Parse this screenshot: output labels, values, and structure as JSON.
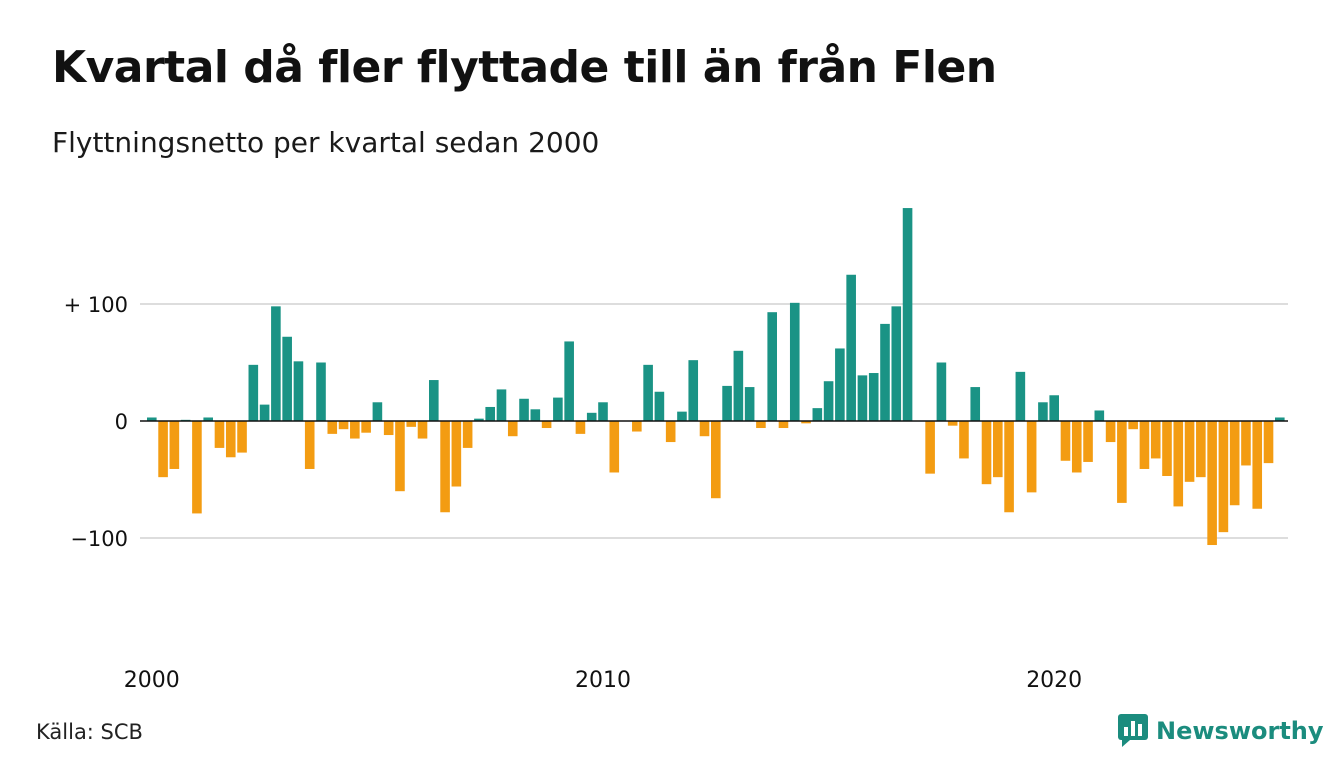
{
  "title": "Kvartal då fler flyttade till än från Flen",
  "subtitle": "Flyttningsnetto per kvartal sedan 2000",
  "source": "Källa: SCB",
  "brand": "Newsworthy",
  "colors": {
    "positive": "#1a9385",
    "negative": "#f39c12",
    "grid": "#dddddd",
    "brand": "#1b8c7e"
  },
  "chart_data": {
    "type": "bar",
    "ylim": [
      -160,
      200
    ],
    "yticks": [
      {
        "value": 100,
        "label": "+ 100"
      },
      {
        "value": 0,
        "label": "0"
      },
      {
        "value": -100,
        "label": "−100"
      }
    ],
    "xticks": [
      {
        "year": 2000,
        "label": "2000"
      },
      {
        "year": 2010,
        "label": "2010"
      },
      {
        "year": 2020,
        "label": "2020"
      }
    ],
    "x_start": "2000 Q1",
    "grid": true,
    "values": [
      3,
      -48,
      -41,
      1,
      -79,
      3,
      -23,
      -31,
      -27,
      48,
      14,
      98,
      72,
      51,
      -41,
      50,
      -11,
      -7,
      -15,
      -10,
      16,
      -12,
      -60,
      -5,
      -15,
      35,
      -78,
      -56,
      -23,
      2,
      12,
      27,
      -13,
      19,
      10,
      -6,
      20,
      68,
      -11,
      7,
      16,
      -44,
      0,
      -9,
      48,
      25,
      -18,
      8,
      52,
      -13,
      -66,
      30,
      60,
      29,
      -6,
      93,
      -6,
      101,
      -2,
      11,
      34,
      62,
      125,
      39,
      41,
      83,
      98,
      182,
      0,
      -45,
      50,
      -4,
      -32,
      29,
      -54,
      -48,
      -78,
      42,
      -61,
      16,
      22,
      -34,
      -44,
      -35,
      9,
      -18,
      -70,
      -7,
      -41,
      -32,
      -47,
      -73,
      -52,
      -48,
      -106,
      -95,
      -72,
      -38,
      -75,
      -36,
      3
    ]
  }
}
